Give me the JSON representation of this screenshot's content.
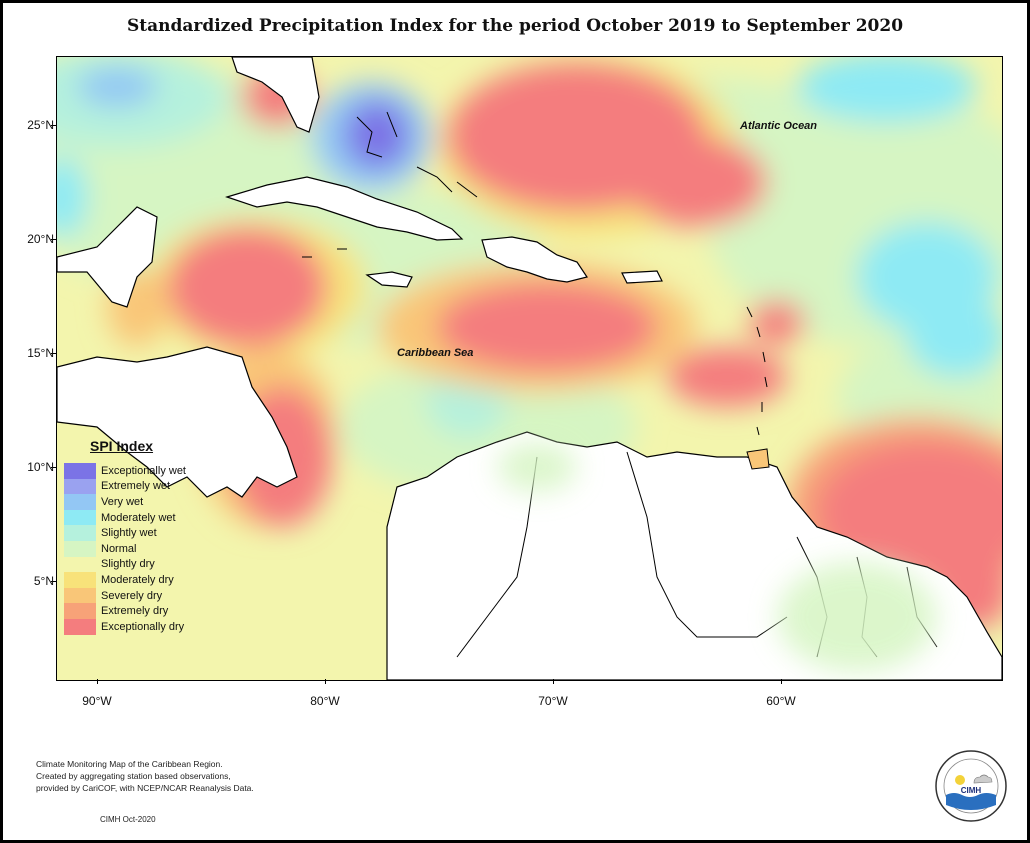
{
  "title": "Standardized Precipitation Index for the period October 2019 to September 2020",
  "axes": {
    "y_ticks": [
      "25°N",
      "20°N",
      "15°N",
      "10°N",
      "5°N"
    ],
    "x_ticks": [
      "90°W",
      "80°W",
      "70°W",
      "60°W"
    ]
  },
  "labels": {
    "atlantic": "Atlantic Ocean",
    "caribbean": "Caribbean Sea"
  },
  "legend": {
    "title": "SPI Index",
    "items": [
      {
        "label": "Exceptionally wet",
        "color": "#7b73e6"
      },
      {
        "label": "Extremely wet",
        "color": "#9aa2f0"
      },
      {
        "label": "Very wet",
        "color": "#93c7f4"
      },
      {
        "label": "Moderately wet",
        "color": "#8eeaf4"
      },
      {
        "label": "Slightly wet",
        "color": "#b5f1dd"
      },
      {
        "label": "Normal",
        "color": "#d6f5c3"
      },
      {
        "label": "Slightly dry",
        "color": "#f3f5ad"
      },
      {
        "label": "Moderately dry",
        "color": "#f8e27a"
      },
      {
        "label": "Severely dry",
        "color": "#f9c678"
      },
      {
        "label": "Extremely dry",
        "color": "#f7a278"
      },
      {
        "label": "Exceptionally dry",
        "color": "#f47d7e"
      }
    ]
  },
  "note": [
    "Climate Monitoring Map of the Caribbean Region.",
    "Created by aggregating station based observations,",
    "provided by CariCOF, with NCEP/NCAR Reanalysis Data."
  ],
  "credit": "CIMH Oct-2020",
  "logo": {
    "abbr": "CIMH",
    "ring_text": "Caribbean Institute for Meteorology and Hydrology"
  }
}
